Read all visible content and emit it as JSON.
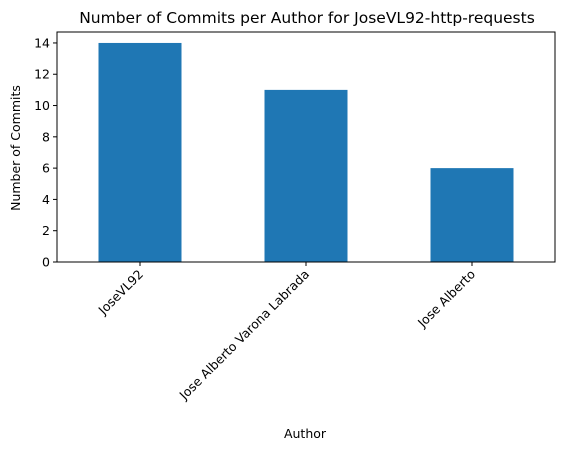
{
  "chart_data": {
    "type": "bar",
    "title": "Number of Commits per Author for JoseVL92-http-requests",
    "xlabel": "Author",
    "ylabel": "Number of Commits",
    "categories": [
      "JoseVL92",
      "Jose Alberto Varona Labrada",
      "Jose Alberto"
    ],
    "values": [
      14,
      11,
      6
    ],
    "ylim": [
      0,
      14.7
    ],
    "yticks": [
      0,
      2,
      4,
      6,
      8,
      10,
      12,
      14
    ],
    "bar_color": "#1f77b4",
    "grid": false,
    "legend": "none"
  }
}
